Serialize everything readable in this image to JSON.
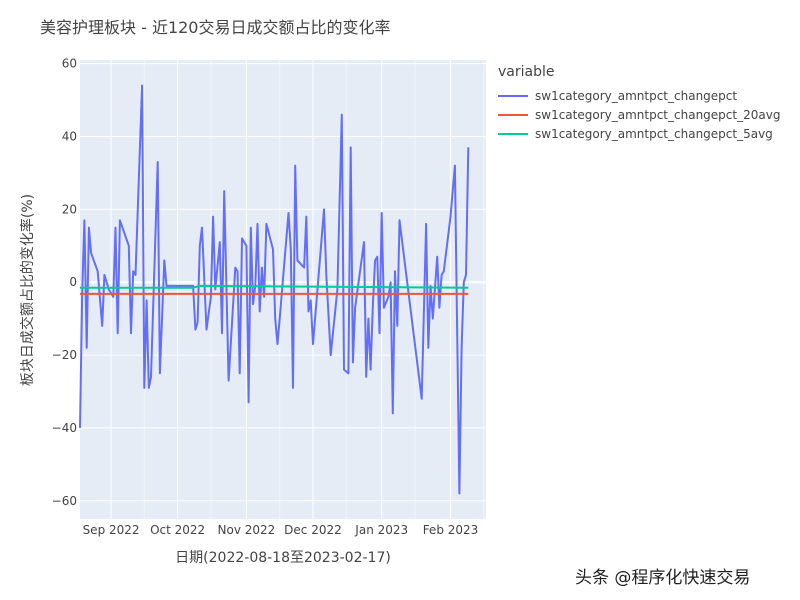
{
  "chart_data": {
    "type": "line",
    "title": "美容护理板块 - 近120交易日成交额占比的变化率",
    "xlabel": "日期(2022-08-18至2023-02-17)",
    "ylabel": "板块日成交额占比的变化率(%)",
    "ylim": [
      -65,
      61
    ],
    "xlim": [
      "2022-08-18",
      "2023-02-17"
    ],
    "x_ticks": [
      {
        "date": "2022-09-01",
        "label": "Sep 2022"
      },
      {
        "date": "2022-10-01",
        "label": "Oct 2022"
      },
      {
        "date": "2022-11-01",
        "label": "Nov 2022"
      },
      {
        "date": "2022-12-01",
        "label": "Dec 2022"
      },
      {
        "date": "2023-01-01",
        "label": "Jan 2023"
      },
      {
        "date": "2023-02-01",
        "label": "Feb 2023"
      }
    ],
    "y_ticks": [
      60,
      40,
      20,
      0,
      -20,
      -40,
      -60
    ],
    "grid": true,
    "legend_title": "variable",
    "legend_position": "top-right",
    "series": [
      {
        "name": "sw1category_amntpct_changepct",
        "color": "#636efa",
        "points": [
          [
            "2022-08-18",
            -40
          ],
          [
            "2022-08-19",
            -3
          ],
          [
            "2022-08-20",
            17
          ],
          [
            "2022-08-21",
            -18
          ],
          [
            "2022-08-22",
            15
          ],
          [
            "2022-08-23",
            8
          ],
          [
            "2022-08-26",
            3
          ],
          [
            "2022-08-28",
            -12
          ],
          [
            "2022-08-29",
            2
          ],
          [
            "2022-08-31",
            -2
          ],
          [
            "2022-09-02",
            -4
          ],
          [
            "2022-09-03",
            15
          ],
          [
            "2022-09-04",
            -14
          ],
          [
            "2022-09-05",
            17
          ],
          [
            "2022-09-09",
            10
          ],
          [
            "2022-09-10",
            -14
          ],
          [
            "2022-09-11",
            3
          ],
          [
            "2022-09-12",
            2
          ],
          [
            "2022-09-15",
            54
          ],
          [
            "2022-09-16",
            -29
          ],
          [
            "2022-09-17",
            -5
          ],
          [
            "2022-09-18",
            -29
          ],
          [
            "2022-09-19",
            -26
          ],
          [
            "2022-09-22",
            33
          ],
          [
            "2022-09-23",
            -25
          ],
          [
            "2022-09-25",
            6
          ],
          [
            "2022-09-26",
            -1
          ],
          [
            "2022-10-08",
            -1
          ],
          [
            "2022-10-09",
            -13
          ],
          [
            "2022-10-10",
            -11
          ],
          [
            "2022-10-11",
            10
          ],
          [
            "2022-10-12",
            15
          ],
          [
            "2022-10-14",
            -13
          ],
          [
            "2022-10-16",
            -4
          ],
          [
            "2022-10-17",
            18
          ],
          [
            "2022-10-18",
            -2
          ],
          [
            "2022-10-20",
            11
          ],
          [
            "2022-10-21",
            -14
          ],
          [
            "2022-10-22",
            25
          ],
          [
            "2022-10-24",
            -27
          ],
          [
            "2022-10-27",
            4
          ],
          [
            "2022-10-28",
            3
          ],
          [
            "2022-10-29",
            -25
          ],
          [
            "2022-10-30",
            12
          ],
          [
            "2022-11-01",
            10
          ],
          [
            "2022-11-02",
            -33
          ],
          [
            "2022-11-03",
            15
          ],
          [
            "2022-11-04",
            -6
          ],
          [
            "2022-11-05",
            -1
          ],
          [
            "2022-11-06",
            16
          ],
          [
            "2022-11-07",
            -8
          ],
          [
            "2022-11-08",
            4
          ],
          [
            "2022-11-09",
            -4
          ],
          [
            "2022-11-10",
            16
          ],
          [
            "2022-11-13",
            9
          ],
          [
            "2022-11-14",
            -10
          ],
          [
            "2022-11-15",
            -17
          ],
          [
            "2022-11-16",
            -10
          ],
          [
            "2022-11-20",
            19
          ],
          [
            "2022-11-21",
            9
          ],
          [
            "2022-11-22",
            -29
          ],
          [
            "2022-11-23",
            32
          ],
          [
            "2022-11-24",
            6
          ],
          [
            "2022-11-27",
            4
          ],
          [
            "2022-11-28",
            18
          ],
          [
            "2022-11-29",
            -8
          ],
          [
            "2022-11-30",
            -5
          ],
          [
            "2022-12-01",
            -17
          ],
          [
            "2022-12-06",
            20
          ],
          [
            "2022-12-07",
            2
          ],
          [
            "2022-12-09",
            -20
          ],
          [
            "2022-12-12",
            -2
          ],
          [
            "2022-12-14",
            46
          ],
          [
            "2022-12-15",
            -24
          ],
          [
            "2022-12-17",
            -25
          ],
          [
            "2022-12-18",
            37
          ],
          [
            "2022-12-19",
            -22
          ],
          [
            "2022-12-20",
            -7
          ],
          [
            "2022-12-24",
            11
          ],
          [
            "2022-12-25",
            -26
          ],
          [
            "2022-12-26",
            -10
          ],
          [
            "2022-12-27",
            -24
          ],
          [
            "2022-12-28",
            -6
          ],
          [
            "2022-12-29",
            6
          ],
          [
            "2022-12-30",
            7
          ],
          [
            "2022-12-31",
            -14
          ],
          [
            "2023-01-01",
            19
          ],
          [
            "2023-01-02",
            -7
          ],
          [
            "2023-01-04",
            -4
          ],
          [
            "2023-01-05",
            0
          ],
          [
            "2023-01-06",
            -36
          ],
          [
            "2023-01-07",
            3
          ],
          [
            "2023-01-08",
            -12
          ],
          [
            "2023-01-09",
            17
          ],
          [
            "2023-01-19",
            -32
          ],
          [
            "2023-01-21",
            16
          ],
          [
            "2023-01-22",
            -18
          ],
          [
            "2023-01-23",
            -1
          ],
          [
            "2023-01-24",
            -10
          ],
          [
            "2023-01-26",
            7
          ],
          [
            "2023-01-27",
            -7
          ],
          [
            "2023-01-28",
            2
          ],
          [
            "2023-01-29",
            3
          ],
          [
            "2023-02-01",
            18
          ],
          [
            "2023-02-03",
            32
          ],
          [
            "2023-02-05",
            -58
          ],
          [
            "2023-02-06",
            -18
          ],
          [
            "2023-02-07",
            0
          ],
          [
            "2023-02-08",
            2
          ],
          [
            "2023-02-09",
            37
          ]
        ]
      },
      {
        "name": "sw1category_amntpct_changepct_20avg",
        "color": "#ef553b",
        "points": [
          [
            "2022-08-18",
            -3.2
          ],
          [
            "2023-02-09",
            -3.2
          ]
        ]
      },
      {
        "name": "sw1category_amntpct_changepct_5avg",
        "color": "#00cc96",
        "points": [
          [
            "2022-08-18",
            -1.5
          ],
          [
            "2022-10-08",
            -1.5
          ],
          [
            "2022-10-11",
            -1.0
          ],
          [
            "2023-02-09",
            -1.5
          ]
        ]
      }
    ]
  },
  "watermark": "头条 @程序化快速交易"
}
